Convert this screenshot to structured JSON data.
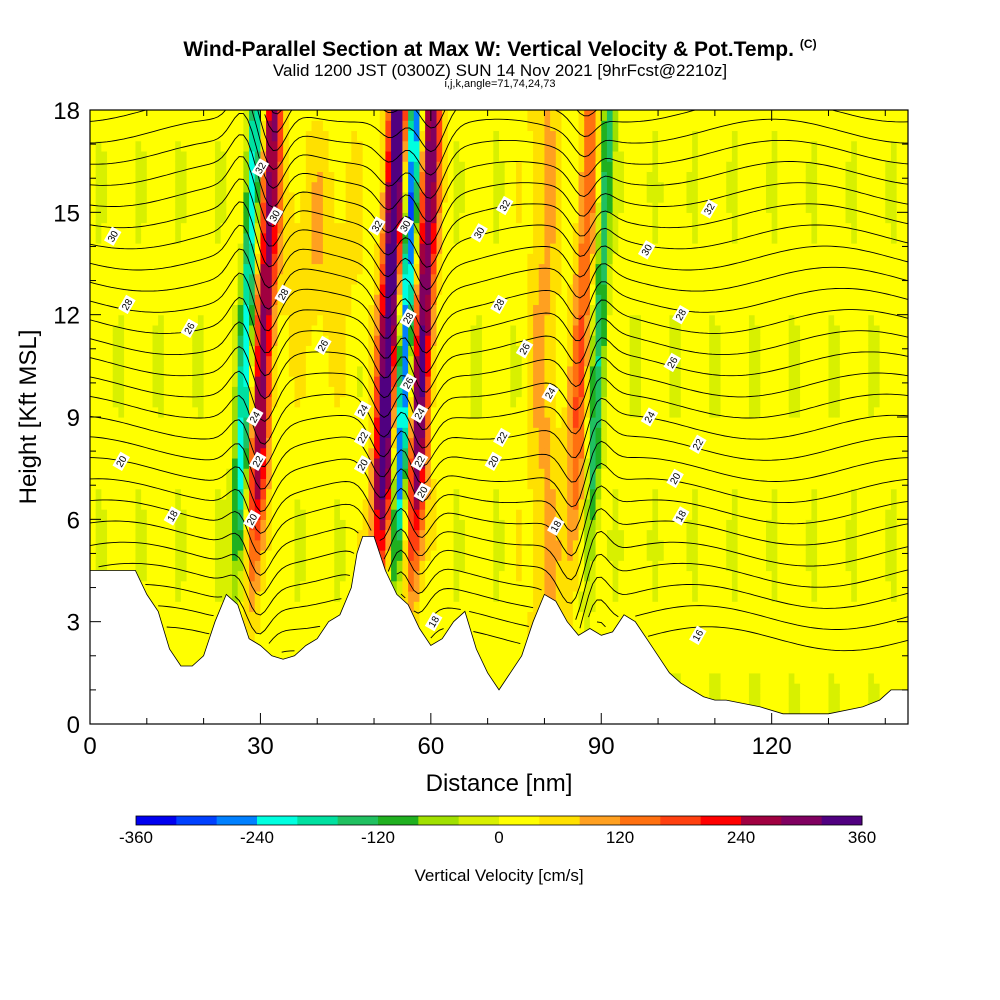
{
  "title": {
    "main": "Wind-Parallel Section at Max W: Vertical Velocity & Pot.Temp.",
    "copyright": "(C)",
    "valid": "Valid 1200 JST (0300Z) SUN 14 Nov 2021 [9hrFcst@2210z]",
    "indices": "i,j,k,angle=71,74,24,73"
  },
  "chart_data": {
    "type": "heatmap",
    "xlabel": "Distance [nm]",
    "ylabel": "Height [Kft MSL]",
    "xlim": [
      0,
      144
    ],
    "ylim": [
      0,
      18
    ],
    "x_ticks": [
      0,
      30,
      60,
      90,
      120
    ],
    "y_ticks": [
      0,
      3,
      6,
      9,
      12,
      15,
      18
    ],
    "colorbar": {
      "label": "Vertical Velocity [cm/s]",
      "min": -360,
      "max": 360,
      "step": 40,
      "tick_values": [
        -360,
        -240,
        -120,
        0,
        120,
        240,
        360
      ],
      "colors": [
        "#0000f0",
        "#0040ff",
        "#0080ff",
        "#00c8ff",
        "#00ffe0",
        "#00e0a0",
        "#20c060",
        "#20b020",
        "#60c820",
        "#a0e000",
        "#d8f000",
        "#ffff00",
        "#ffe000",
        "#ffc000",
        "#ffa020",
        "#ff7010",
        "#ff4010",
        "#ff0000",
        "#d00020",
        "#a00040",
        "#800060",
        "#500080"
      ]
    },
    "updraft_cores": [
      {
        "x": 30,
        "peak_w": 260
      },
      {
        "x": 52,
        "peak_w": 360
      },
      {
        "x": 58,
        "peak_w": 300
      },
      {
        "x": 86,
        "peak_w": 140
      }
    ],
    "downdraft_cores": [
      {
        "x": 27,
        "peak_w": -240
      },
      {
        "x": 55,
        "peak_w": -320
      },
      {
        "x": 89,
        "peak_w": -160
      }
    ],
    "terrain_kft": [
      {
        "x": 0,
        "h": 4.5
      },
      {
        "x": 8,
        "h": 4.5
      },
      {
        "x": 10,
        "h": 3.8
      },
      {
        "x": 12,
        "h": 3.3
      },
      {
        "x": 14,
        "h": 2.2
      },
      {
        "x": 16,
        "h": 1.7
      },
      {
        "x": 18,
        "h": 1.7
      },
      {
        "x": 20,
        "h": 2.0
      },
      {
        "x": 22,
        "h": 3.0
      },
      {
        "x": 24,
        "h": 3.8
      },
      {
        "x": 26,
        "h": 3.5
      },
      {
        "x": 28,
        "h": 2.5
      },
      {
        "x": 30,
        "h": 2.3
      },
      {
        "x": 32,
        "h": 2.0
      },
      {
        "x": 34,
        "h": 1.9
      },
      {
        "x": 36,
        "h": 2.0
      },
      {
        "x": 38,
        "h": 2.3
      },
      {
        "x": 40,
        "h": 2.5
      },
      {
        "x": 42,
        "h": 3.0
      },
      {
        "x": 44,
        "h": 3.2
      },
      {
        "x": 46,
        "h": 4.0
      },
      {
        "x": 47,
        "h": 5.0
      },
      {
        "x": 48,
        "h": 5.5
      },
      {
        "x": 50,
        "h": 5.5
      },
      {
        "x": 52,
        "h": 4.5
      },
      {
        "x": 54,
        "h": 3.8
      },
      {
        "x": 56,
        "h": 3.5
      },
      {
        "x": 58,
        "h": 2.8
      },
      {
        "x": 60,
        "h": 2.3
      },
      {
        "x": 62,
        "h": 2.5
      },
      {
        "x": 64,
        "h": 3.0
      },
      {
        "x": 66,
        "h": 3.3
      },
      {
        "x": 68,
        "h": 2.2
      },
      {
        "x": 70,
        "h": 1.5
      },
      {
        "x": 72,
        "h": 1.0
      },
      {
        "x": 74,
        "h": 1.5
      },
      {
        "x": 76,
        "h": 2.0
      },
      {
        "x": 78,
        "h": 3.0
      },
      {
        "x": 80,
        "h": 3.8
      },
      {
        "x": 82,
        "h": 3.6
      },
      {
        "x": 84,
        "h": 3.0
      },
      {
        "x": 86,
        "h": 2.6
      },
      {
        "x": 88,
        "h": 2.8
      },
      {
        "x": 90,
        "h": 2.6
      },
      {
        "x": 92,
        "h": 2.7
      },
      {
        "x": 94,
        "h": 3.2
      },
      {
        "x": 96,
        "h": 3.0
      },
      {
        "x": 98,
        "h": 2.5
      },
      {
        "x": 100,
        "h": 2.0
      },
      {
        "x": 102,
        "h": 1.5
      },
      {
        "x": 104,
        "h": 1.2
      },
      {
        "x": 106,
        "h": 1.0
      },
      {
        "x": 108,
        "h": 0.8
      },
      {
        "x": 110,
        "h": 0.7
      },
      {
        "x": 112,
        "h": 0.7
      },
      {
        "x": 118,
        "h": 0.5
      },
      {
        "x": 122,
        "h": 0.3
      },
      {
        "x": 130,
        "h": 0.3
      },
      {
        "x": 136,
        "h": 0.5
      },
      {
        "x": 139,
        "h": 0.7
      },
      {
        "x": 141,
        "h": 1.0
      },
      {
        "x": 144,
        "h": 1.0
      }
    ],
    "theta_contours": {
      "levels_label": [
        16,
        18,
        20,
        22,
        24,
        26,
        28,
        30,
        32
      ],
      "labels": [
        {
          "text": "32",
          "x": 30,
          "y": 16.3
        },
        {
          "text": "30",
          "x": 32.5,
          "y": 14.9
        },
        {
          "text": "28",
          "x": 34,
          "y": 12.6
        },
        {
          "text": "26",
          "x": 41,
          "y": 11.1
        },
        {
          "text": "24",
          "x": 29,
          "y": 9.0
        },
        {
          "text": "22",
          "x": 29.5,
          "y": 7.7
        },
        {
          "text": "20",
          "x": 28.5,
          "y": 6.0
        },
        {
          "text": "30",
          "x": 4,
          "y": 14.3
        },
        {
          "text": "28",
          "x": 6.5,
          "y": 12.3
        },
        {
          "text": "26",
          "x": 17.5,
          "y": 11.6
        },
        {
          "text": "20",
          "x": 5.5,
          "y": 7.7
        },
        {
          "text": "18",
          "x": 14.5,
          "y": 6.1
        },
        {
          "text": "32",
          "x": 50.5,
          "y": 14.6
        },
        {
          "text": "30",
          "x": 55.5,
          "y": 14.6
        },
        {
          "text": "28",
          "x": 56,
          "y": 11.9
        },
        {
          "text": "26",
          "x": 56,
          "y": 10.0
        },
        {
          "text": "24",
          "x": 48,
          "y": 9.2
        },
        {
          "text": "22",
          "x": 48,
          "y": 8.4
        },
        {
          "text": "20",
          "x": 48,
          "y": 7.6
        },
        {
          "text": "24",
          "x": 58,
          "y": 9.1
        },
        {
          "text": "22",
          "x": 58,
          "y": 7.7
        },
        {
          "text": "20",
          "x": 58.5,
          "y": 6.8
        },
        {
          "text": "18",
          "x": 60.5,
          "y": 3.0
        },
        {
          "text": "32",
          "x": 73,
          "y": 15.2
        },
        {
          "text": "30",
          "x": 68.5,
          "y": 14.4
        },
        {
          "text": "28",
          "x": 72,
          "y": 12.3
        },
        {
          "text": "26",
          "x": 76.5,
          "y": 11.0
        },
        {
          "text": "24",
          "x": 81,
          "y": 9.7
        },
        {
          "text": "22",
          "x": 72.5,
          "y": 8.4
        },
        {
          "text": "20",
          "x": 71,
          "y": 7.7
        },
        {
          "text": "18",
          "x": 82,
          "y": 5.8
        },
        {
          "text": "32",
          "x": 109,
          "y": 15.1
        },
        {
          "text": "30",
          "x": 98,
          "y": 13.9
        },
        {
          "text": "28",
          "x": 104,
          "y": 12.0
        },
        {
          "text": "26",
          "x": 102.5,
          "y": 10.6
        },
        {
          "text": "24",
          "x": 98.5,
          "y": 9.0
        },
        {
          "text": "22",
          "x": 107,
          "y": 8.2
        },
        {
          "text": "20",
          "x": 103,
          "y": 7.2
        },
        {
          "text": "18",
          "x": 104,
          "y": 6.1
        },
        {
          "text": "16",
          "x": 107,
          "y": 2.6
        }
      ]
    }
  }
}
